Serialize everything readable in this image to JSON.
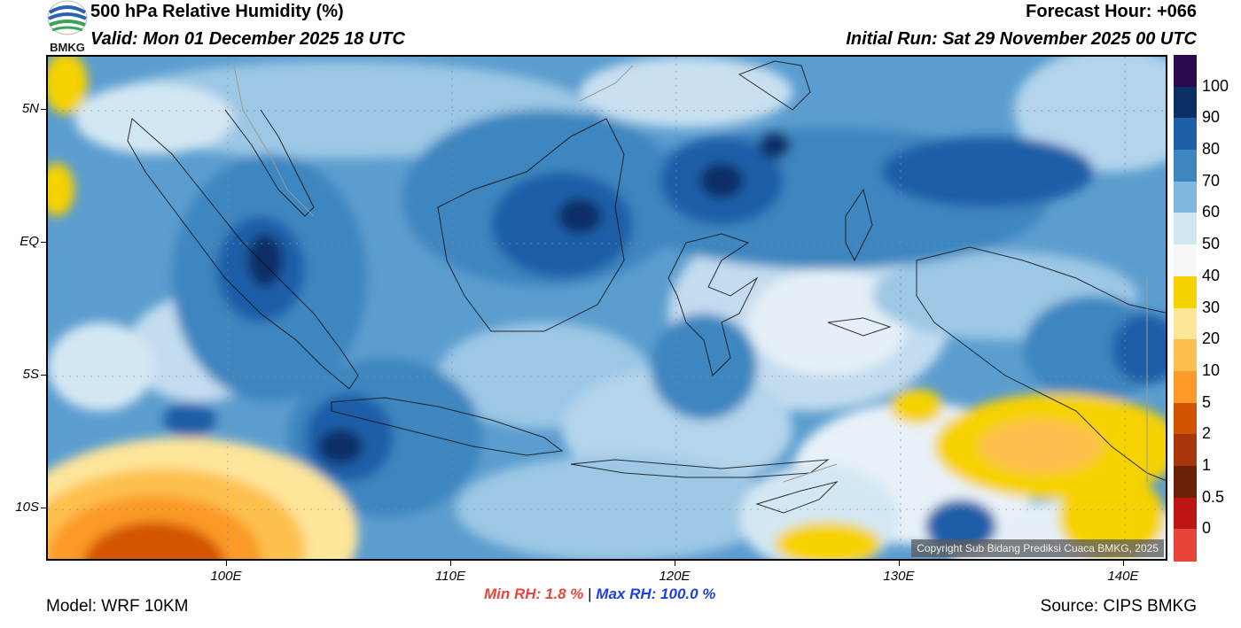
{
  "header": {
    "title": "500 hPa Relative Humidity (%)",
    "valid": "Valid: Mon 01 December 2025 18 UTC",
    "forecast_hour": "Forecast Hour: +066",
    "initial_run": "Initial Run: Sat 29 November 2025 00 UTC"
  },
  "logo": {
    "text": "BMKG",
    "icon": "bmkg-logo-icon"
  },
  "map": {
    "copyright": "Copyright Sub Bidang Prediksi Cuaca BMKG, 2025",
    "lat_labels": [
      "5N",
      "EQ",
      "5S",
      "10S"
    ],
    "lon_labels": [
      "100E",
      "110E",
      "120E",
      "130E",
      "140E"
    ]
  },
  "colorbar": {
    "labels": [
      "100",
      "90",
      "80",
      "70",
      "60",
      "50",
      "40",
      "30",
      "20",
      "10",
      "5",
      "2",
      "1",
      "0.5",
      "0"
    ],
    "colors": [
      "#2c0a52",
      "#0c2f66",
      "#1f5fa8",
      "#3d86c0",
      "#7fb7de",
      "#d3e7f3",
      "#f7f7f7",
      "#f6d200",
      "#fde59a",
      "#fdc04e",
      "#fb9a28",
      "#d35400",
      "#a8380c",
      "#6b2008",
      "#bf1414",
      "#e8443a"
    ]
  },
  "stats": {
    "min_label": "Min RH:   1.8 %",
    "separator": "|",
    "max_label": "Max RH: 100.0 %"
  },
  "footer": {
    "model": "Model: WRF 10KM",
    "source": "Source: CIPS BMKG"
  }
}
